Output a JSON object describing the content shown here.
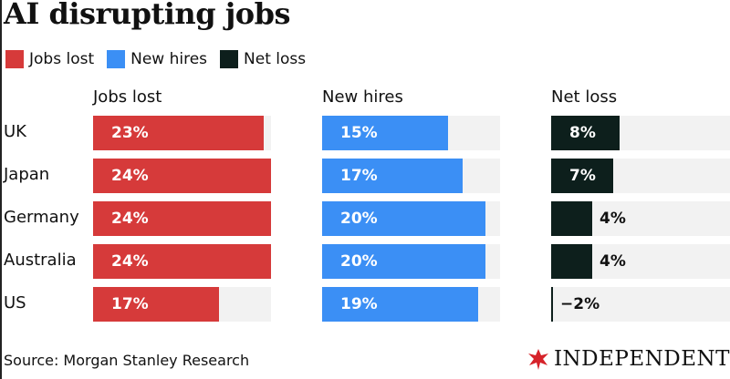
{
  "title": "AI disrupting jobs",
  "legend": [
    {
      "label": "Jobs lost",
      "color": "#d63a3a"
    },
    {
      "label": "New hires",
      "color": "#3b8ff5"
    },
    {
      "label": "Net loss",
      "color": "#0d1f1c"
    }
  ],
  "source": "Source: Morgan Stanley Research",
  "publisher": "INDEPENDENT",
  "chart_data": {
    "type": "bar",
    "title": "AI disrupting jobs",
    "categories": [
      "UK",
      "Japan",
      "Germany",
      "Australia",
      "US"
    ],
    "value_suffix": "%",
    "series": [
      {
        "name": "Jobs lost",
        "color": "#d63a3a",
        "values": [
          23,
          24,
          24,
          24,
          17
        ],
        "labels": [
          "23%",
          "24%",
          "24%",
          "24%",
          "17%"
        ]
      },
      {
        "name": "New hires",
        "color": "#3b8ff5",
        "values": [
          15,
          17,
          20,
          20,
          19
        ],
        "labels": [
          "15%",
          "17%",
          "20%",
          "20%",
          "19%"
        ]
      },
      {
        "name": "Net loss",
        "color": "#0d1f1c",
        "values": [
          8,
          7,
          4,
          4,
          -2
        ],
        "labels": [
          "8%",
          "7%",
          "4%",
          "4%",
          "−2%"
        ]
      }
    ]
  }
}
